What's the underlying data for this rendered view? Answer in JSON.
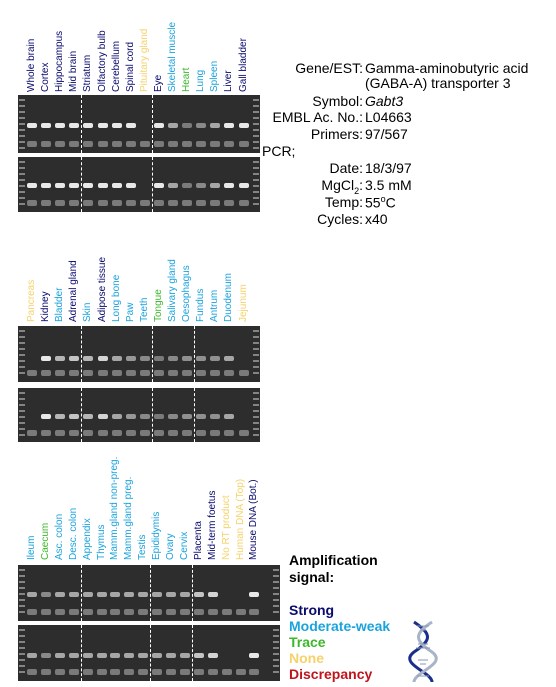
{
  "panels": [
    {
      "lanes": [
        {
          "label": "Whole brain",
          "color": "#0a0a6e",
          "signal": 2
        },
        {
          "label": "Cortex",
          "color": "#0a0a6e",
          "signal": 2
        },
        {
          "label": "Hippocampus",
          "color": "#0a0a6e",
          "signal": 2
        },
        {
          "label": "Mid brain",
          "color": "#0a0a6e",
          "signal": 2
        },
        {
          "label": "Striatum",
          "color": "#0a0a6e",
          "signal": 2
        },
        {
          "label": "Olfactory bulb",
          "color": "#0a0a6e",
          "signal": 2
        },
        {
          "label": "Cerebellum",
          "color": "#0a0a6e",
          "signal": 2
        },
        {
          "label": "Spinal cord",
          "color": "#0a0a6e",
          "signal": 2
        },
        {
          "label": "Pituitary gland",
          "color": "#f5d26b",
          "signal": 0
        },
        {
          "label": "Eye",
          "color": "#0a0a6e",
          "signal": 2
        },
        {
          "label": "Skeletal muscle",
          "color": "#1ba3dc",
          "signal": 1
        },
        {
          "label": "Heart",
          "color": "#3cb82b",
          "signal": 0.4
        },
        {
          "label": "Lung",
          "color": "#1ba3dc",
          "signal": 0.6
        },
        {
          "label": "Spleen",
          "color": "#1ba3dc",
          "signal": 1
        },
        {
          "label": "Liver",
          "color": "#0a0a6e",
          "signal": 2
        },
        {
          "label": "Gall bladder",
          "color": "#0a0a6e",
          "signal": 2
        }
      ],
      "dividers": [
        4,
        9
      ]
    },
    {
      "lanes": [
        {
          "label": "Pancreas",
          "color": "#f5d26b",
          "signal": 0
        },
        {
          "label": "Kidney",
          "color": "#0a0a6e",
          "signal": 2
        },
        {
          "label": "Bladder",
          "color": "#1ba3dc",
          "signal": 1.2
        },
        {
          "label": "Adrenal gland",
          "color": "#0a0a6e",
          "signal": 1.4
        },
        {
          "label": "Skin",
          "color": "#1ba3dc",
          "signal": 1.2
        },
        {
          "label": "Adipose tissue",
          "color": "#0a0a6e",
          "signal": 1.6
        },
        {
          "label": "Long bone",
          "color": "#1ba3dc",
          "signal": 1
        },
        {
          "label": "Paw",
          "color": "#1ba3dc",
          "signal": 0.8
        },
        {
          "label": "Teeth",
          "color": "#1ba3dc",
          "signal": 0.6
        },
        {
          "label": "Tongue",
          "color": "#3cb82b",
          "signal": 0.4
        },
        {
          "label": "Salivary gland",
          "color": "#1ba3dc",
          "signal": 0.6
        },
        {
          "label": "Oesophagus",
          "color": "#1ba3dc",
          "signal": 0.7
        },
        {
          "label": "Fundus",
          "color": "#1ba3dc",
          "signal": 0.7
        },
        {
          "label": "Antrum",
          "color": "#1ba3dc",
          "signal": 0.7
        },
        {
          "label": "Duodenum",
          "color": "#1ba3dc",
          "signal": 1
        },
        {
          "label": "Jejunum",
          "color": "#f5d26b",
          "signal": 0
        }
      ],
      "dividers": [
        4,
        9,
        12
      ]
    },
    {
      "lanes": [
        {
          "label": "Ileum",
          "color": "#1ba3dc",
          "signal": 1
        },
        {
          "label": "Caecum",
          "color": "#3cb82b",
          "signal": 0.6
        },
        {
          "label": "Asc. colon",
          "color": "#1ba3dc",
          "signal": 1
        },
        {
          "label": "Desc. colon",
          "color": "#1ba3dc",
          "signal": 1
        },
        {
          "label": "Appendix",
          "color": "#1ba3dc",
          "signal": 1
        },
        {
          "label": "Thymus",
          "color": "#1ba3dc",
          "signal": 1
        },
        {
          "label": "Mamm.gland non-preg.",
          "color": "#1ba3dc",
          "signal": 1
        },
        {
          "label": "Mamm.gland preg.",
          "color": "#1ba3dc",
          "signal": 1
        },
        {
          "label": "Testis",
          "color": "#1ba3dc",
          "signal": 1
        },
        {
          "label": "Epididymis",
          "color": "#1ba3dc",
          "signal": 1
        },
        {
          "label": "Ovary",
          "color": "#1ba3dc",
          "signal": 1
        },
        {
          "label": "Cervix",
          "color": "#1ba3dc",
          "signal": 1
        },
        {
          "label": "Placenta",
          "color": "#0a0a6e",
          "signal": 1.4
        },
        {
          "label": "Mid-term foetus",
          "color": "#0a0a6e",
          "signal": 1.6
        },
        {
          "label": "No RT product",
          "color": "#f5d26b",
          "signal": 0
        },
        {
          "label": "Human DNA (Top)",
          "color": "#f5d26b",
          "signal": 0
        },
        {
          "label": "Mouse DNA (Bot.)",
          "color": "#0a0a6e",
          "signal": 2
        }
      ],
      "dividers": [
        4,
        9,
        12
      ]
    }
  ],
  "info": {
    "gene_key": "Gene/EST:",
    "gene_val_1": "Gamma-aminobutyric acid",
    "gene_val_2": "(GABA-A) transporter 3",
    "symbol_key": "Symbol:",
    "symbol_val": "Gabt3",
    "embl_key": "EMBL Ac. No.:",
    "embl_val": "L04663",
    "primers_key": "Primers:",
    "primers_val": "97/567",
    "pcr": "PCR;",
    "date_key": "Date:",
    "date_val": "18/3/97",
    "mgcl2_key": "MgCl2:",
    "mgcl2_val": "3.5 mM",
    "temp_key": "Temp:",
    "temp_val": "55oC",
    "cycles_key": "Cycles:",
    "cycles_val": "x40"
  },
  "legend": {
    "title_1": "Amplification",
    "title_2": "signal:",
    "strong": "Strong",
    "moderate": "Moderate-weak",
    "trace": "Trace",
    "none": "None",
    "discrepancy": "Discrepancy",
    "colors": {
      "strong": "#0a0a6e",
      "moderate": "#1ba3dc",
      "trace": "#3cb82b",
      "none": "#f5d26b",
      "discrepancy": "#c0141c"
    },
    "icon": "dna-helix-icon"
  }
}
